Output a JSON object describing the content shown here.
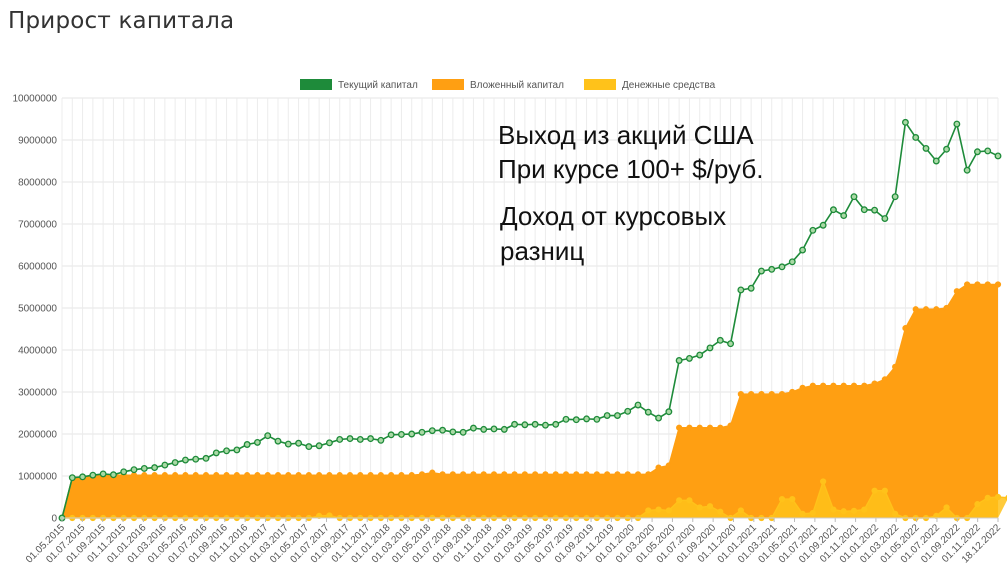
{
  "page": {
    "title": "Прирост капитала"
  },
  "chart_data": {
    "type": "area",
    "title": "Прирост капитала",
    "ylim": [
      0,
      10000000
    ],
    "y_ticks": [
      "0",
      "1000000",
      "2000000",
      "3000000",
      "4000000",
      "5000000",
      "6000000",
      "7000000",
      "8000000",
      "9000000",
      "10000000"
    ],
    "x_tick_labels": [
      "01.05.2015",
      "01.07.2015",
      "01.09.2015",
      "01.11.2015",
      "01.01.2016",
      "01.03.2016",
      "01.05.2016",
      "01.07.2016",
      "01.09.2016",
      "01.11.2016",
      "01.01.2017",
      "01.03.2017",
      "01.05.2017",
      "01.07.2017",
      "01.09.2017",
      "01.11.2017",
      "01.01.2018",
      "01.03.2018",
      "01.05.2018",
      "01.07.2018",
      "01.09.2018",
      "01.11.2018",
      "01.01.2019",
      "01.03.2019",
      "01.05.2019",
      "01.07.2019",
      "01.09.2019",
      "01.11.2019",
      "01.01.2020",
      "01.03.2020",
      "01.05.2020",
      "01.07.2020",
      "01.09.2020",
      "01.11.2020",
      "01.01.2021",
      "01.03.2021",
      "01.05.2021",
      "01.07.2021",
      "01.09.2021",
      "01.11.2021",
      "01.01.2022",
      "01.03.2022",
      "01.05.2022",
      "01.07.2022",
      "01.09.2022",
      "01.11.2022",
      "18.12.2022"
    ],
    "grid": true,
    "legend_position": "top-center",
    "series": [
      {
        "name": "Текущий капитал",
        "color": "#1e8b3a",
        "style": "line-with-markers",
        "values": [
          0,
          960000,
          980000,
          1020000,
          1050000,
          1030000,
          1100000,
          1150000,
          1180000,
          1200000,
          1260000,
          1320000,
          1380000,
          1400000,
          1420000,
          1550000,
          1600000,
          1620000,
          1750000,
          1800000,
          1960000,
          1830000,
          1760000,
          1780000,
          1700000,
          1720000,
          1790000,
          1870000,
          1890000,
          1870000,
          1890000,
          1850000,
          1980000,
          1990000,
          2000000,
          2040000,
          2080000,
          2090000,
          2050000,
          2040000,
          2140000,
          2110000,
          2120000,
          2110000,
          2230000,
          2220000,
          2230000,
          2210000,
          2230000,
          2350000,
          2340000,
          2360000,
          2350000,
          2440000,
          2440000,
          2540000,
          2690000,
          2520000,
          2380000,
          2530000,
          3750000,
          3800000,
          3880000,
          4050000,
          4230000,
          4150000,
          5430000,
          5470000,
          5880000,
          5920000,
          5980000,
          6100000,
          6380000,
          6850000,
          6970000,
          7340000,
          7200000,
          7650000,
          7340000,
          7330000,
          7130000,
          7650000,
          9420000,
          9060000,
          8800000,
          8500000,
          8780000,
          9380000,
          8280000,
          8720000,
          8740000,
          8620000
        ]
      },
      {
        "name": "Вложенный капитал",
        "color": "#ff9f12",
        "style": "area",
        "values": [
          0,
          960000,
          980000,
          1000000,
          1020000,
          1020000,
          1020000,
          1020000,
          1020000,
          1020000,
          1020000,
          1020000,
          1020000,
          1020000,
          1020000,
          1020000,
          1020000,
          1020000,
          1020000,
          1020000,
          1020000,
          1020000,
          1020000,
          1020000,
          1020000,
          1020000,
          1020000,
          1020000,
          1020000,
          1020000,
          1020000,
          1020000,
          1020000,
          1020000,
          1020000,
          1040000,
          1080000,
          1040000,
          1040000,
          1040000,
          1040000,
          1040000,
          1040000,
          1040000,
          1040000,
          1040000,
          1040000,
          1040000,
          1040000,
          1040000,
          1040000,
          1040000,
          1040000,
          1040000,
          1040000,
          1040000,
          1040000,
          1040000,
          1200000,
          1250000,
          2150000,
          2150000,
          2150000,
          2150000,
          2150000,
          2200000,
          2950000,
          2950000,
          2950000,
          2950000,
          2950000,
          3000000,
          3100000,
          3150000,
          3150000,
          3150000,
          3150000,
          3150000,
          3150000,
          3200000,
          3300000,
          3600000,
          4520000,
          4970000,
          4970000,
          4970000,
          5000000,
          5400000,
          5560000,
          5560000,
          5560000,
          5560000
        ]
      },
      {
        "name": "Денежные средства",
        "color": "#ffc21a",
        "style": "area",
        "values": [
          0,
          0,
          0,
          0,
          0,
          0,
          0,
          0,
          0,
          0,
          0,
          0,
          0,
          0,
          0,
          0,
          0,
          0,
          0,
          0,
          0,
          0,
          0,
          0,
          0,
          50000,
          60000,
          0,
          0,
          0,
          0,
          0,
          0,
          0,
          0,
          0,
          0,
          0,
          0,
          0,
          0,
          0,
          0,
          0,
          0,
          0,
          0,
          0,
          0,
          0,
          0,
          0,
          0,
          0,
          0,
          0,
          0,
          180000,
          200000,
          180000,
          420000,
          420000,
          250000,
          280000,
          150000,
          0,
          180000,
          0,
          0,
          0,
          450000,
          450000,
          100000,
          120000,
          870000,
          200000,
          160000,
          170000,
          200000,
          650000,
          650000,
          100000,
          0,
          0,
          0,
          50000,
          250000,
          0,
          0,
          330000,
          480000,
          500000,
          480000
        ]
      }
    ]
  }
}
